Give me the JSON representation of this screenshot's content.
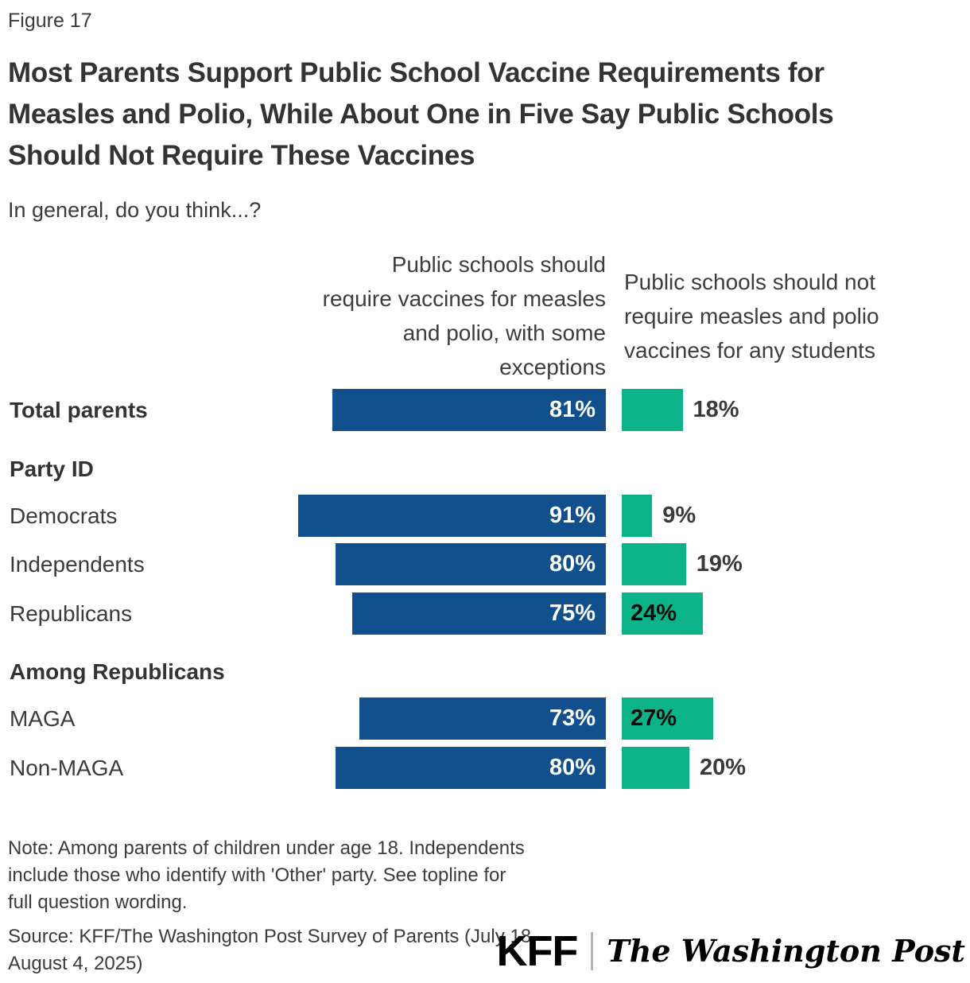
{
  "header": {
    "figure_label": "Figure 17",
    "title": "Most Parents Support Public School Vaccine Requirements for\nMeasles and Polio, While About One in Five Say Public Schools\nShould Not Require These Vaccines",
    "subtitle": "In general, do you think...?"
  },
  "column_headers": {
    "require": "Public schools should\nrequire vaccines for measles\nand polio, with some\nexceptions",
    "not_require": "Public schools should not\nrequire measles and polio\nvaccines for any students"
  },
  "chart_data": {
    "type": "bar",
    "orientation": "horizontal",
    "unit": "%",
    "value_range": [
      0,
      100
    ],
    "grid": false,
    "legend_position": "column-headers-top",
    "series": [
      {
        "name": "Public schools should require vaccines for measles and polio, with some exceptions",
        "color": "#11508c",
        "value_label_color": "#ffffff"
      },
      {
        "name": "Public schools should not require measles and polio vaccines for any students",
        "color": "#0db388",
        "value_label_color": "#0a0a0a"
      }
    ],
    "rows": [
      {
        "group": "Total parents",
        "bold": true,
        "require": 81,
        "not_require": 18,
        "not_label_inside": false
      },
      {
        "section": "Party ID"
      },
      {
        "group": "Democrats",
        "bold": false,
        "require": 91,
        "not_require": 9,
        "not_label_inside": false
      },
      {
        "group": "Independents",
        "bold": false,
        "require": 80,
        "not_require": 19,
        "not_label_inside": false
      },
      {
        "group": "Republicans",
        "bold": false,
        "require": 75,
        "not_require": 24,
        "not_label_inside": true
      },
      {
        "section": "Among Republicans"
      },
      {
        "group": "MAGA",
        "bold": false,
        "require": 73,
        "not_require": 27,
        "not_label_inside": true
      },
      {
        "group": "Non-MAGA",
        "bold": false,
        "require": 80,
        "not_require": 20,
        "not_label_inside": false
      }
    ]
  },
  "footer": {
    "note": "Note: Among parents of children under age 18. Independents\ninclude those who identify with 'Other' party. See topline for\nfull question wording.",
    "source": "Source: KFF/The Washington Post Survey of Parents (July 18-\nAugust 4, 2025)",
    "logos": {
      "kff": "KFF",
      "washington_post": "The Washington Post"
    }
  },
  "colors": {
    "bar_require": "#11508c",
    "bar_not_require": "#0db388",
    "title_text": "#333333",
    "body_text": "#3b3b3b"
  }
}
